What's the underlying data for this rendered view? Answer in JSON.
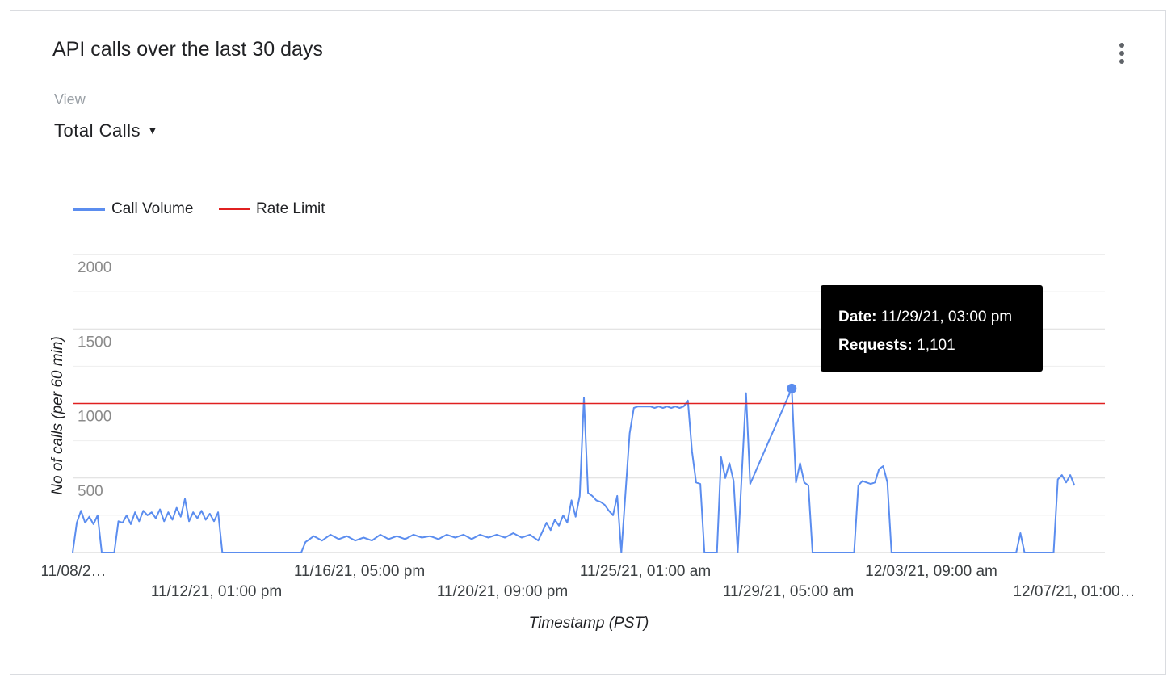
{
  "card": {
    "title": "API calls over the last 30 days",
    "view_label": "View",
    "view_value": "Total Calls",
    "menu_icon": "more-vert-icon"
  },
  "legend": {
    "call_volume": "Call Volume",
    "rate_limit": "Rate Limit"
  },
  "tooltip": {
    "date_label": "Date:",
    "date_value": "11/29/21, 03:00 pm",
    "requests_label": "Requests:",
    "requests_value": "1,101"
  },
  "colors": {
    "call_volume": "#5b8def",
    "rate_limit": "#e02020",
    "grid": "#e6e6e6"
  },
  "chart_data": {
    "type": "line",
    "xlabel": "Timestamp (PST)",
    "ylabel": "No of calls (per 60 min)",
    "ylim": [
      0,
      2000
    ],
    "ytick_labels": [
      "500",
      "1000",
      "1500",
      "2000"
    ],
    "xtick_labels": [
      "11/08/2…",
      "11/12/21, 01:00 pm",
      "11/16/21, 05:00 pm",
      "11/20/21, 09:00 pm",
      "11/25/21, 01:00 am",
      "11/29/21, 05:00 am",
      "12/03/21, 09:00 am",
      "12/07/21, 01:00…"
    ],
    "x_range": [
      "11/08/21, 01:00 am",
      "12/09/21, 01:00 am"
    ],
    "series": [
      {
        "name": "Call Volume",
        "color": "#5b8def",
        "points": [
          [
            "11/08/21, 00:00",
            0
          ],
          [
            "11/08/21, 03:00",
            200
          ],
          [
            "11/08/21, 06:00",
            280
          ],
          [
            "11/08/21, 09:00",
            200
          ],
          [
            "11/08/21, 12:00",
            240
          ],
          [
            "11/08/21, 15:00",
            190
          ],
          [
            "11/08/21, 18:00",
            250
          ],
          [
            "11/08/21, 21:00",
            0
          ],
          [
            "11/09/21, 06:00",
            0
          ],
          [
            "11/09/21, 09:00",
            210
          ],
          [
            "11/09/21, 12:00",
            200
          ],
          [
            "11/09/21, 15:00",
            250
          ],
          [
            "11/09/21, 18:00",
            190
          ],
          [
            "11/09/21, 21:00",
            270
          ],
          [
            "11/10/21, 00:00",
            210
          ],
          [
            "11/10/21, 03:00",
            280
          ],
          [
            "11/10/21, 06:00",
            250
          ],
          [
            "11/10/21, 09:00",
            270
          ],
          [
            "11/10/21, 12:00",
            230
          ],
          [
            "11/10/21, 15:00",
            290
          ],
          [
            "11/10/21, 18:00",
            210
          ],
          [
            "11/10/21, 21:00",
            270
          ],
          [
            "11/11/21, 00:00",
            220
          ],
          [
            "11/11/21, 03:00",
            300
          ],
          [
            "11/11/21, 06:00",
            240
          ],
          [
            "11/11/21, 09:00",
            360
          ],
          [
            "11/11/21, 12:00",
            210
          ],
          [
            "11/11/21, 15:00",
            270
          ],
          [
            "11/11/21, 18:00",
            230
          ],
          [
            "11/11/21, 21:00",
            280
          ],
          [
            "11/12/21, 00:00",
            220
          ],
          [
            "11/12/21, 03:00",
            260
          ],
          [
            "11/12/21, 06:00",
            210
          ],
          [
            "11/12/21, 09:00",
            270
          ],
          [
            "11/12/21, 12:00",
            0
          ],
          [
            "11/14/21, 21:00",
            0
          ],
          [
            "11/15/21, 00:00",
            70
          ],
          [
            "11/15/21, 06:00",
            110
          ],
          [
            "11/15/21, 12:00",
            80
          ],
          [
            "11/15/21, 18:00",
            120
          ],
          [
            "11/16/21, 00:00",
            90
          ],
          [
            "11/16/21, 06:00",
            110
          ],
          [
            "11/16/21, 12:00",
            80
          ],
          [
            "11/16/21, 18:00",
            100
          ],
          [
            "11/17/21, 00:00",
            80
          ],
          [
            "11/17/21, 06:00",
            120
          ],
          [
            "11/17/21, 12:00",
            90
          ],
          [
            "11/17/21, 18:00",
            110
          ],
          [
            "11/18/21, 00:00",
            90
          ],
          [
            "11/18/21, 06:00",
            120
          ],
          [
            "11/18/21, 12:00",
            100
          ],
          [
            "11/18/21, 18:00",
            110
          ],
          [
            "11/19/21, 00:00",
            90
          ],
          [
            "11/19/21, 06:00",
            120
          ],
          [
            "11/19/21, 12:00",
            100
          ],
          [
            "11/19/21, 18:00",
            120
          ],
          [
            "11/20/21, 00:00",
            90
          ],
          [
            "11/20/21, 06:00",
            120
          ],
          [
            "11/20/21, 12:00",
            100
          ],
          [
            "11/20/21, 18:00",
            120
          ],
          [
            "11/21/21, 00:00",
            100
          ],
          [
            "11/21/21, 06:00",
            130
          ],
          [
            "11/21/21, 12:00",
            100
          ],
          [
            "11/21/21, 18:00",
            120
          ],
          [
            "11/22/21, 00:00",
            80
          ],
          [
            "11/22/21, 06:00",
            200
          ],
          [
            "11/22/21, 09:00",
            150
          ],
          [
            "11/22/21, 12:00",
            220
          ],
          [
            "11/22/21, 15:00",
            180
          ],
          [
            "11/22/21, 18:00",
            250
          ],
          [
            "11/22/21, 21:00",
            200
          ],
          [
            "11/23/21, 00:00",
            350
          ],
          [
            "11/23/21, 03:00",
            240
          ],
          [
            "11/23/21, 06:00",
            380
          ],
          [
            "11/23/21, 09:00",
            1040
          ],
          [
            "11/23/21, 12:00",
            400
          ],
          [
            "11/23/21, 15:00",
            380
          ],
          [
            "11/23/21, 18:00",
            350
          ],
          [
            "11/23/21, 21:00",
            340
          ],
          [
            "11/24/21, 00:00",
            320
          ],
          [
            "11/24/21, 03:00",
            280
          ],
          [
            "11/24/21, 06:00",
            250
          ],
          [
            "11/24/21, 09:00",
            380
          ],
          [
            "11/24/21, 12:00",
            0
          ],
          [
            "11/24/21, 18:00",
            800
          ],
          [
            "11/24/21, 21:00",
            970
          ],
          [
            "11/25/21, 00:00",
            980
          ],
          [
            "11/25/21, 03:00",
            980
          ],
          [
            "11/25/21, 06:00",
            980
          ],
          [
            "11/25/21, 09:00",
            980
          ],
          [
            "11/25/21, 12:00",
            970
          ],
          [
            "11/25/21, 15:00",
            980
          ],
          [
            "11/25/21, 18:00",
            970
          ],
          [
            "11/25/21, 21:00",
            980
          ],
          [
            "11/26/21, 00:00",
            970
          ],
          [
            "11/26/21, 03:00",
            980
          ],
          [
            "11/26/21, 06:00",
            970
          ],
          [
            "11/26/21, 09:00",
            980
          ],
          [
            "11/26/21, 12:00",
            1020
          ],
          [
            "11/26/21, 15:00",
            680
          ],
          [
            "11/26/21, 18:00",
            470
          ],
          [
            "11/26/21, 21:00",
            460
          ],
          [
            "11/27/21, 00:00",
            0
          ],
          [
            "11/27/21, 09:00",
            0
          ],
          [
            "11/27/21, 12:00",
            640
          ],
          [
            "11/27/21, 15:00",
            500
          ],
          [
            "11/27/21, 18:00",
            600
          ],
          [
            "11/27/21, 21:00",
            480
          ],
          [
            "11/28/21, 00:00",
            0
          ],
          [
            "11/28/21, 06:00",
            1070
          ],
          [
            "11/28/21, 09:00",
            460
          ],
          [
            "11/29/21, 15:00",
            1101
          ],
          [
            "11/29/21, 18:00",
            470
          ],
          [
            "11/29/21, 21:00",
            600
          ],
          [
            "11/30/21, 00:00",
            470
          ],
          [
            "11/30/21, 03:00",
            450
          ],
          [
            "11/30/21, 06:00",
            0
          ],
          [
            "12/01/21, 12:00",
            0
          ],
          [
            "12/01/21, 15:00",
            450
          ],
          [
            "12/01/21, 18:00",
            480
          ],
          [
            "12/01/21, 21:00",
            470
          ],
          [
            "12/02/21, 00:00",
            460
          ],
          [
            "12/02/21, 03:00",
            470
          ],
          [
            "12/02/21, 06:00",
            560
          ],
          [
            "12/02/21, 09:00",
            580
          ],
          [
            "12/02/21, 12:00",
            470
          ],
          [
            "12/02/21, 15:00",
            0
          ],
          [
            "12/06/21, 09:00",
            0
          ],
          [
            "12/06/21, 12:00",
            130
          ],
          [
            "12/06/21, 15:00",
            0
          ],
          [
            "12/07/21, 12:00",
            0
          ],
          [
            "12/07/21, 15:00",
            490
          ],
          [
            "12/07/21, 18:00",
            520
          ],
          [
            "12/07/21, 21:00",
            470
          ],
          [
            "12/08/21, 00:00",
            520
          ],
          [
            "12/08/21, 03:00",
            450
          ]
        ]
      },
      {
        "name": "Rate Limit",
        "color": "#e02020",
        "constant": 1000
      }
    ],
    "legend_position": "top-left",
    "grid": true,
    "highlighted_point": {
      "x": "11/29/21, 03:00 pm",
      "y": 1101
    }
  }
}
